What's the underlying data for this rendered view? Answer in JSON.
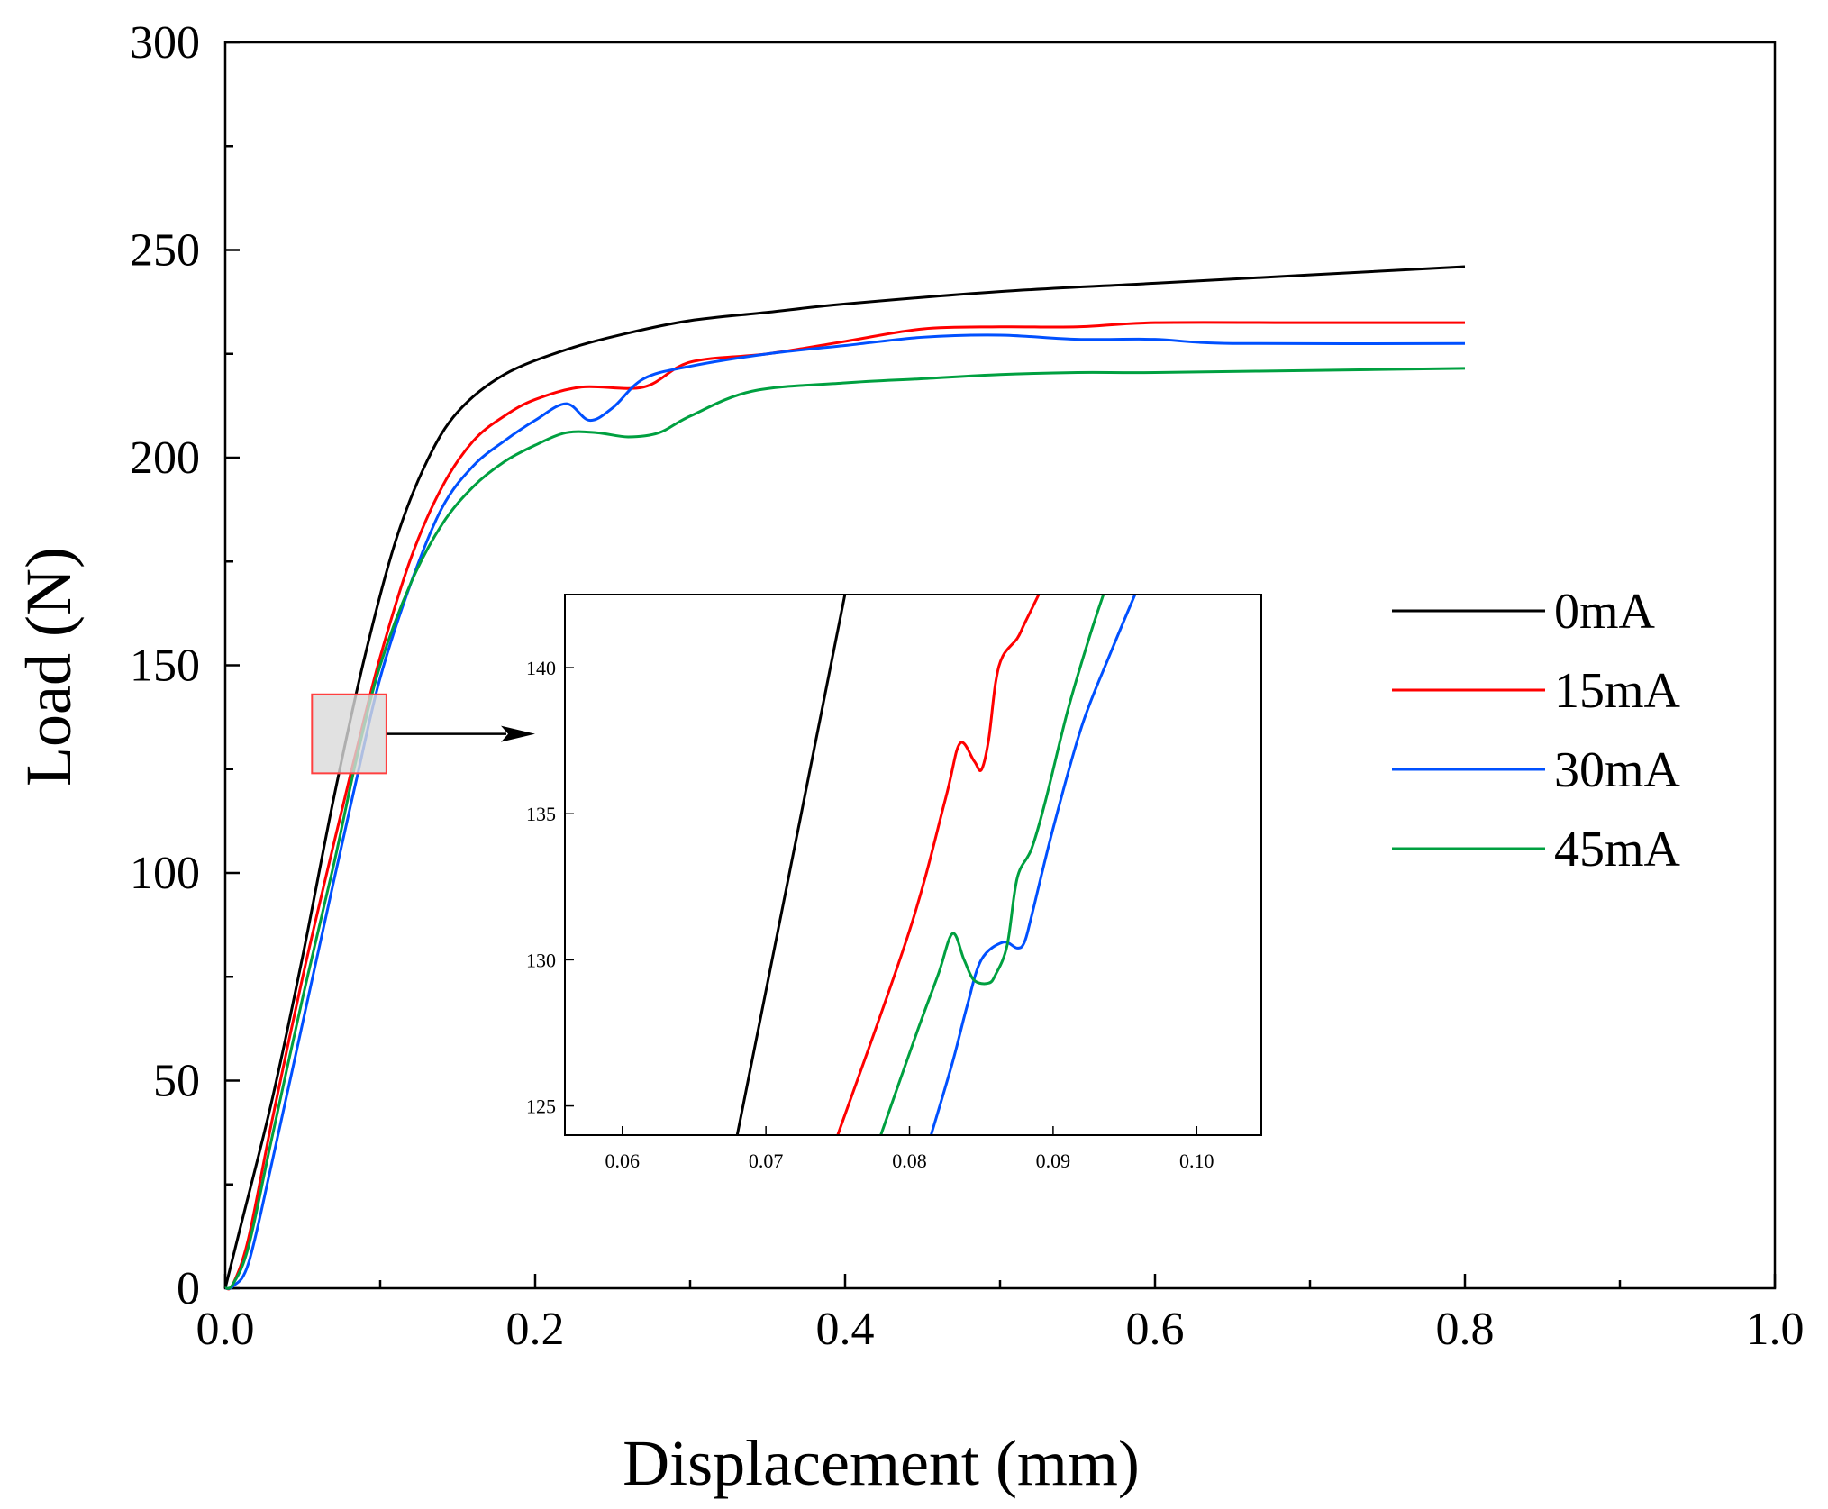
{
  "chart_data": {
    "type": "line",
    "xlabel": "Displacement (mm)",
    "ylabel": "Load (N)",
    "xlim": [
      0,
      1.0
    ],
    "ylim": [
      0,
      300
    ],
    "x_ticks": [
      "0.0",
      "0.2",
      "0.4",
      "0.6",
      "0.8",
      "1.0"
    ],
    "y_ticks": [
      "0",
      "50",
      "100",
      "150",
      "200",
      "250",
      "300"
    ],
    "legend_position": "right",
    "series": [
      {
        "name": "0mA",
        "color": "#000000",
        "points": [
          [
            0,
            0
          ],
          [
            0.01,
            15
          ],
          [
            0.03,
            45
          ],
          [
            0.05,
            80
          ],
          [
            0.07,
            118
          ],
          [
            0.09,
            152
          ],
          [
            0.11,
            180
          ],
          [
            0.13,
            199
          ],
          [
            0.15,
            211
          ],
          [
            0.18,
            220
          ],
          [
            0.22,
            226
          ],
          [
            0.26,
            230
          ],
          [
            0.3,
            233
          ],
          [
            0.35,
            235
          ],
          [
            0.4,
            237
          ],
          [
            0.5,
            240
          ],
          [
            0.6,
            242
          ],
          [
            0.7,
            244
          ],
          [
            0.8,
            246
          ]
        ]
      },
      {
        "name": "15mA",
        "color": "#ff0000",
        "points": [
          [
            0,
            0
          ],
          [
            0.005,
            1
          ],
          [
            0.015,
            12
          ],
          [
            0.03,
            40
          ],
          [
            0.05,
            75
          ],
          [
            0.07,
            107
          ],
          [
            0.085,
            130
          ],
          [
            0.1,
            152
          ],
          [
            0.12,
            176
          ],
          [
            0.14,
            193
          ],
          [
            0.16,
            204
          ],
          [
            0.18,
            210
          ],
          [
            0.2,
            214
          ],
          [
            0.23,
            217
          ],
          [
            0.27,
            217
          ],
          [
            0.3,
            223
          ],
          [
            0.35,
            225
          ],
          [
            0.4,
            228
          ],
          [
            0.45,
            231
          ],
          [
            0.5,
            231.5
          ],
          [
            0.55,
            231.5
          ],
          [
            0.6,
            232.5
          ],
          [
            0.7,
            232.5
          ],
          [
            0.8,
            232.5
          ]
        ]
      },
      {
        "name": "30mA",
        "color": "#0050ff",
        "points": [
          [
            0,
            0
          ],
          [
            0.005,
            0.5
          ],
          [
            0.015,
            6
          ],
          [
            0.03,
            30
          ],
          [
            0.05,
            64
          ],
          [
            0.07,
            98
          ],
          [
            0.085,
            123
          ],
          [
            0.1,
            147
          ],
          [
            0.12,
            170
          ],
          [
            0.14,
            188
          ],
          [
            0.16,
            198
          ],
          [
            0.18,
            204
          ],
          [
            0.2,
            209
          ],
          [
            0.22,
            213
          ],
          [
            0.235,
            209
          ],
          [
            0.25,
            212
          ],
          [
            0.27,
            219
          ],
          [
            0.3,
            222
          ],
          [
            0.35,
            225
          ],
          [
            0.4,
            227
          ],
          [
            0.45,
            229
          ],
          [
            0.5,
            229.5
          ],
          [
            0.55,
            228.5
          ],
          [
            0.6,
            228.5
          ],
          [
            0.65,
            227.5
          ],
          [
            0.8,
            227.5
          ]
        ]
      },
      {
        "name": "45mA",
        "color": "#00a040",
        "points": [
          [
            0,
            0
          ],
          [
            0.005,
            1
          ],
          [
            0.015,
            10
          ],
          [
            0.03,
            36
          ],
          [
            0.05,
            70
          ],
          [
            0.07,
            102
          ],
          [
            0.085,
            128
          ],
          [
            0.1,
            150
          ],
          [
            0.12,
            170
          ],
          [
            0.14,
            184
          ],
          [
            0.16,
            193
          ],
          [
            0.18,
            199
          ],
          [
            0.2,
            203
          ],
          [
            0.22,
            206
          ],
          [
            0.24,
            206
          ],
          [
            0.26,
            205
          ],
          [
            0.28,
            206
          ],
          [
            0.3,
            210
          ],
          [
            0.34,
            216
          ],
          [
            0.4,
            218
          ],
          [
            0.45,
            219
          ],
          [
            0.5,
            220
          ],
          [
            0.55,
            220.5
          ],
          [
            0.6,
            220.5
          ],
          [
            0.7,
            221
          ],
          [
            0.8,
            221.5
          ]
        ]
      }
    ],
    "zoom_box": {
      "x": [
        0.056,
        0.104
      ],
      "y": [
        124,
        143
      ]
    },
    "inset": {
      "xlim": [
        0.056,
        0.1045
      ],
      "ylim": [
        124,
        142.5
      ],
      "x_ticks": [
        "0.06",
        "0.07",
        "0.08",
        "0.09",
        "0.10"
      ],
      "y_ticks": [
        "125",
        "130",
        "135",
        "140"
      ],
      "series": [
        {
          "name": "0mA",
          "color": "#000000",
          "points": [
            [
              0.068,
              124
            ],
            [
              0.0755,
              142.5
            ]
          ]
        },
        {
          "name": "15mA",
          "color": "#ff0000",
          "points": [
            [
              0.075,
              124
            ],
            [
              0.08,
              131
            ],
            [
              0.0825,
              135.5
            ],
            [
              0.0835,
              137.4
            ],
            [
              0.0845,
              136.8
            ],
            [
              0.085,
              136.5
            ],
            [
              0.0855,
              137.5
            ],
            [
              0.086,
              139.5
            ],
            [
              0.0865,
              140.4
            ],
            [
              0.0875,
              141
            ],
            [
              0.088,
              141.5
            ],
            [
              0.089,
              142.5
            ]
          ]
        },
        {
          "name": "30mA",
          "color": "#0050ff",
          "points": [
            [
              0.0815,
              124
            ],
            [
              0.083,
              126.5
            ],
            [
              0.084,
              128.4
            ],
            [
              0.085,
              130
            ],
            [
              0.0865,
              130.6
            ],
            [
              0.0875,
              130.4
            ],
            [
              0.088,
              130.6
            ],
            [
              0.0885,
              131.5
            ],
            [
              0.09,
              134.5
            ],
            [
              0.092,
              138
            ],
            [
              0.094,
              140.5
            ],
            [
              0.0957,
              142.5
            ]
          ]
        },
        {
          "name": "45mA",
          "color": "#00a040",
          "points": [
            [
              0.078,
              124
            ],
            [
              0.0805,
              127.5
            ],
            [
              0.082,
              129.5
            ],
            [
              0.083,
              130.9
            ],
            [
              0.0838,
              130
            ],
            [
              0.0845,
              129.3
            ],
            [
              0.0855,
              129.2
            ],
            [
              0.086,
              129.5
            ],
            [
              0.0868,
              130.5
            ],
            [
              0.0875,
              132.8
            ],
            [
              0.0885,
              133.8
            ],
            [
              0.0895,
              135.5
            ],
            [
              0.091,
              138.5
            ],
            [
              0.0925,
              141
            ],
            [
              0.0935,
              142.5
            ]
          ]
        }
      ]
    }
  }
}
